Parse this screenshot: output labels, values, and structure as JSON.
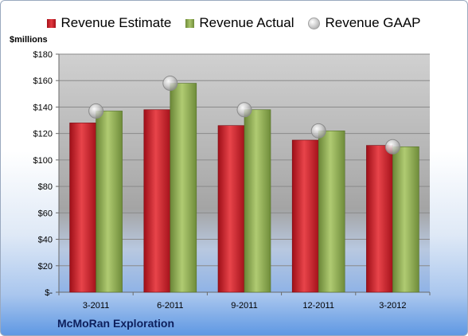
{
  "legend": {
    "estimate": "Revenue Estimate",
    "actual": "Revenue Actual",
    "gaap": "Revenue GAAP"
  },
  "units_label": "$millions",
  "company": "McMoRan Exploration",
  "colors": {
    "estimate": "#c8202a",
    "actual": "#8eab50",
    "gaap": "#b8b8b8",
    "plot_bg": "#c8c8c8",
    "company_text": "#0d1f5c"
  },
  "chart_data": {
    "type": "bar",
    "categories": [
      "3-2011",
      "6-2011",
      "9-2011",
      "12-2011",
      "3-2012"
    ],
    "series": [
      {
        "name": "Revenue Estimate",
        "values": [
          128,
          138,
          126,
          115,
          111
        ]
      },
      {
        "name": "Revenue Actual",
        "values": [
          137,
          158,
          138,
          122,
          110
        ]
      },
      {
        "name": "Revenue GAAP",
        "values": [
          137,
          158,
          138,
          122,
          110
        ],
        "marker": "circle"
      }
    ],
    "ylabel": "$millions",
    "ylim": [
      0,
      180
    ],
    "ytick_labels": [
      "$-",
      "$20",
      "$40",
      "$60",
      "$80",
      "$100",
      "$120",
      "$140",
      "$160",
      "$180"
    ],
    "grid": true,
    "legend_position": "top"
  }
}
